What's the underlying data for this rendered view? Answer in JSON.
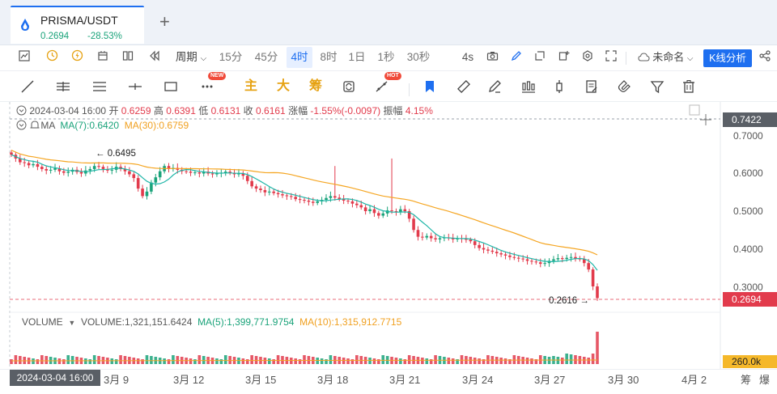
{
  "tab": {
    "title": "PRISMA/USDT",
    "price": "0.2694",
    "change": "-28.53%",
    "add_symbol": "+"
  },
  "toolbar": {
    "interval_label": "周期",
    "intervals": [
      "15分",
      "45分",
      "4时",
      "8时",
      "1日",
      "1秒",
      "30秒",
      "4s"
    ],
    "active_interval": "4时",
    "layout_name": "未命名",
    "kline_analysis": "K线分析"
  },
  "tools": {
    "main_label": "主",
    "big_label": "大",
    "chips_label": "筹",
    "new_badge": "NEW",
    "hot_badge": "HOT"
  },
  "ohlc": {
    "date": "2024-03-04 16:00",
    "open_label": "开",
    "open": "0.6259",
    "high_label": "高",
    "high": "0.6391",
    "low_label": "低",
    "low": "0.6131",
    "close_label": "收",
    "close": "0.6161",
    "change_label": "涨幅",
    "change": "-1.55%(-0.0097)",
    "amp_label": "振幅",
    "amp": "4.15%"
  },
  "ma": {
    "label": "MA",
    "ma7": "MA(7):0.6420",
    "ma30": "MA(30):0.6759"
  },
  "volume": {
    "label": "VOLUME",
    "value": "VOLUME:1,321,151.6424",
    "ma5": "MA(5):1,399,771.9754",
    "ma10": "MA(10):1,315,912.7715",
    "axis_tag": "260.0k"
  },
  "price_axis": {
    "crosshair_tag": "0.7422",
    "ticks": [
      "0.7000",
      "0.6000",
      "0.5000",
      "0.4000",
      "0.3000"
    ],
    "last_price_tag": "0.2694"
  },
  "annotations": {
    "high_marker": "← 0.6495",
    "low_marker": "0.2616 →"
  },
  "x_axis": {
    "cursor_date": "2024-03-04 16:00",
    "labels": [
      "3月 9",
      "3月 12",
      "3月 15",
      "3月 18",
      "3月 21",
      "3月 24",
      "3月 27",
      "3月 30",
      "4月 2"
    ],
    "right_labels": [
      "筹",
      "爆"
    ]
  },
  "colors": {
    "up": "#1aa37a",
    "down": "#e23b4c",
    "ma7": "#1fb6a8",
    "ma30": "#f5a623",
    "accent": "#1e6ff0"
  },
  "chart_data": {
    "type": "candlestick",
    "interval": "4h",
    "ylim": [
      0.26,
      0.74
    ],
    "x_ticks": [
      "3月 9",
      "3月 12",
      "3月 15",
      "3月 18",
      "3月 21",
      "3月 24",
      "3月 27",
      "3月 30",
      "4月 2"
    ],
    "close": [
      0.65,
      0.64,
      0.63,
      0.628,
      0.622,
      0.625,
      0.618,
      0.612,
      0.608,
      0.61,
      0.614,
      0.606,
      0.602,
      0.605,
      0.61,
      0.604,
      0.6,
      0.608,
      0.612,
      0.62,
      0.618,
      0.612,
      0.608,
      0.61,
      0.618,
      0.612,
      0.606,
      0.598,
      0.588,
      0.56,
      0.54,
      0.552,
      0.576,
      0.59,
      0.606,
      0.62,
      0.612,
      0.615,
      0.61,
      0.606,
      0.605,
      0.602,
      0.603,
      0.6,
      0.605,
      0.6,
      0.598,
      0.6,
      0.602,
      0.605,
      0.602,
      0.598,
      0.6,
      0.594,
      0.58,
      0.566,
      0.56,
      0.556,
      0.55,
      0.552,
      0.548,
      0.545,
      0.542,
      0.54,
      0.538,
      0.532,
      0.53,
      0.528,
      0.525,
      0.522,
      0.526,
      0.53,
      0.535,
      0.54,
      0.536,
      0.532,
      0.528,
      0.526,
      0.52,
      0.516,
      0.51,
      0.5,
      0.505,
      0.495,
      0.488,
      0.494,
      0.502,
      0.5,
      0.498,
      0.505,
      0.5,
      0.48,
      0.45,
      0.432,
      0.43,
      0.434,
      0.428,
      0.425,
      0.428,
      0.43,
      0.428,
      0.425,
      0.428,
      0.426,
      0.424,
      0.42,
      0.41,
      0.402,
      0.398,
      0.395,
      0.392,
      0.388,
      0.385,
      0.382,
      0.378,
      0.376,
      0.374,
      0.372,
      0.368,
      0.366,
      0.364,
      0.36,
      0.362,
      0.368,
      0.372,
      0.375,
      0.373,
      0.376,
      0.378,
      0.374,
      0.372,
      0.362,
      0.345,
      0.3,
      0.269
    ],
    "volume_ma": {
      "ma5": "1,399,771.9754",
      "ma10": "1,315,912.7715"
    },
    "ma_periods": [
      7,
      30
    ],
    "high_marker": 0.6495,
    "low_marker": 0.2616,
    "last_price": 0.2694
  }
}
